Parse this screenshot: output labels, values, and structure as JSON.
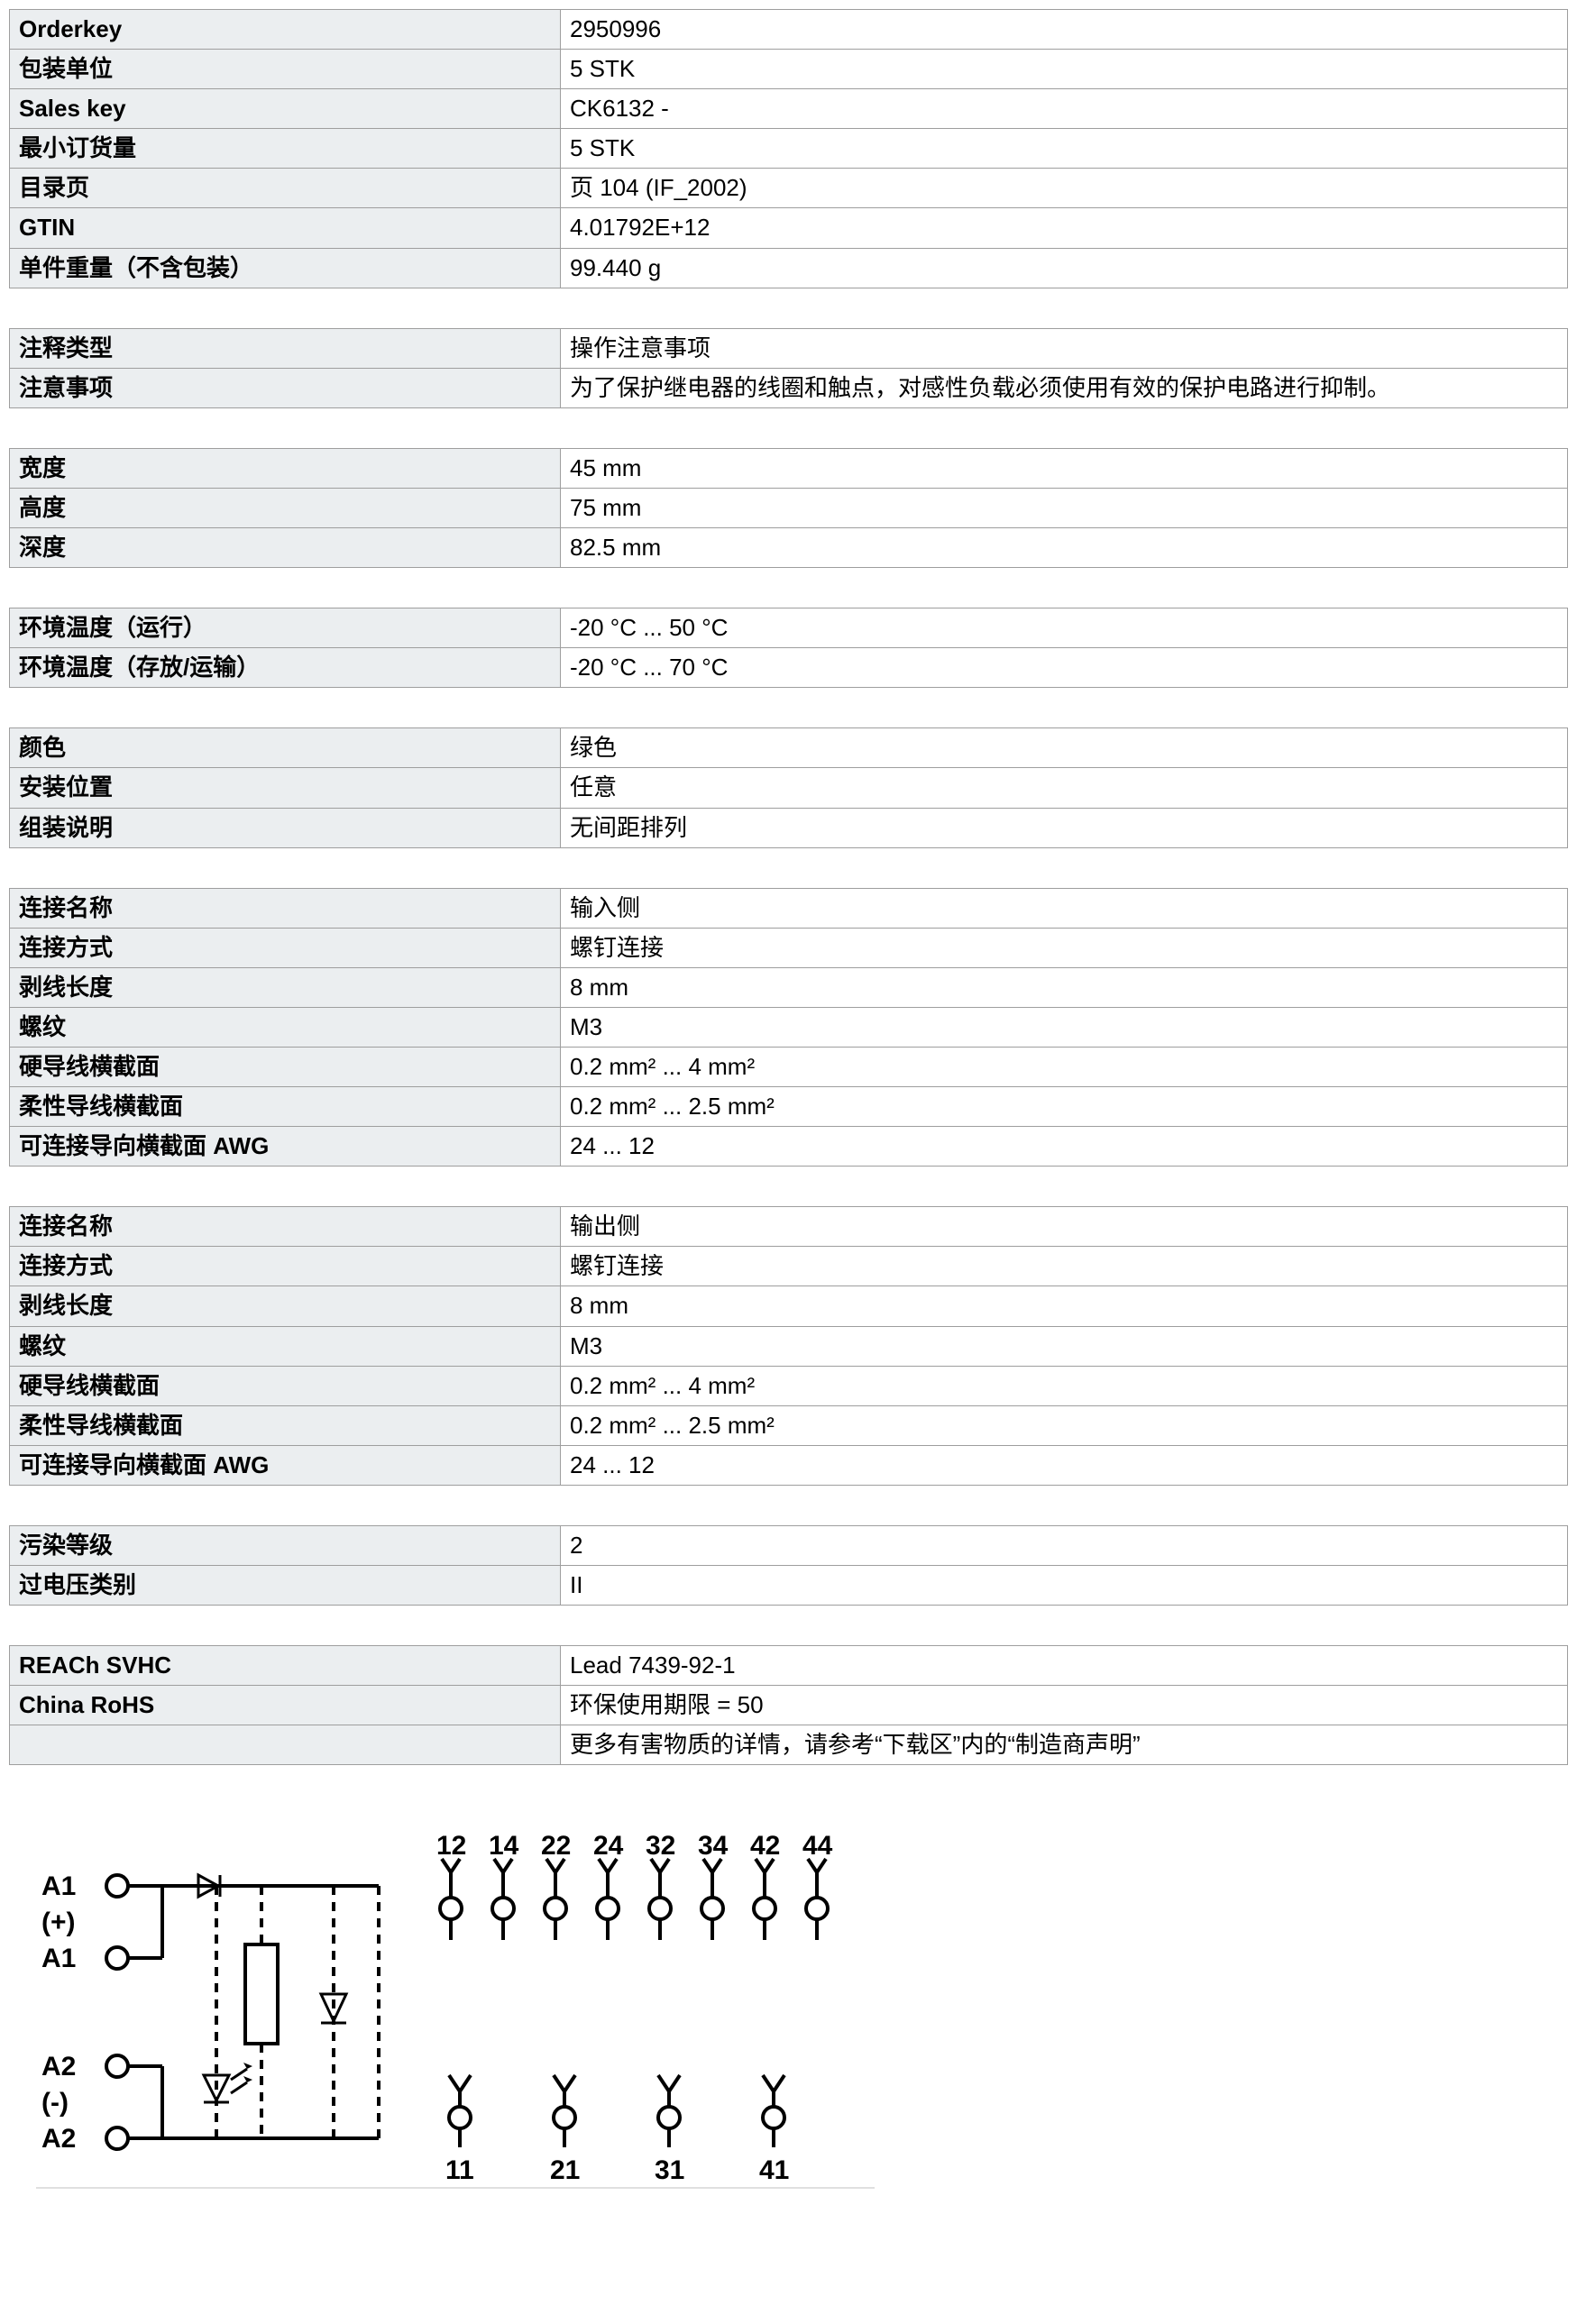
{
  "table1": {
    "rows": [
      {
        "label": "Orderkey",
        "value": "2950996"
      },
      {
        "label": "包装单位",
        "value": "5 STK"
      },
      {
        "label": "Sales key",
        "value": "CK6132 -"
      },
      {
        "label": "最小订货量",
        "value": "5 STK"
      },
      {
        "label": "目录页",
        "value": "页 104 (IF_2002)"
      },
      {
        "label": "GTIN",
        "value": "4.01792E+12"
      },
      {
        "label": "单件重量（不含包装）",
        "value": "99.440 g"
      }
    ]
  },
  "table2": {
    "rows": [
      {
        "label": "注释类型",
        "value": "操作注意事项"
      },
      {
        "label": "注意事项",
        "value": "为了保护继电器的线圈和触点，对感性负载必须使用有效的保护电路进行抑制。"
      }
    ]
  },
  "table3": {
    "rows": [
      {
        "label": "宽度",
        "value": "45 mm"
      },
      {
        "label": "高度",
        "value": "75 mm"
      },
      {
        "label": "深度",
        "value": "82.5 mm"
      }
    ]
  },
  "table4": {
    "rows": [
      {
        "label": "环境温度（运行）",
        "value": "-20 °C ... 50 °C"
      },
      {
        "label": "环境温度（存放/运输）",
        "value": "-20 °C ... 70 °C"
      }
    ]
  },
  "table5": {
    "rows": [
      {
        "label": "颜色",
        "value": "绿色"
      },
      {
        "label": "安装位置",
        "value": "任意"
      },
      {
        "label": "组装说明",
        "value": "无间距排列"
      }
    ]
  },
  "table6": {
    "rows": [
      {
        "label": "连接名称",
        "value": "输入侧"
      },
      {
        "label": "连接方式",
        "value": "螺钉连接"
      },
      {
        "label": "剥线长度",
        "value": "8 mm"
      },
      {
        "label": "螺纹",
        "value": "M3"
      },
      {
        "label": "硬导线横截面",
        "value": "0.2 mm² ... 4 mm²"
      },
      {
        "label": "柔性导线横截面",
        "value": "0.2 mm² ... 2.5 mm²"
      },
      {
        "label": "可连接导向横截面 AWG",
        "value": "24 ... 12"
      }
    ]
  },
  "table7": {
    "rows": [
      {
        "label": "连接名称",
        "value": "输出侧"
      },
      {
        "label": "连接方式",
        "value": "螺钉连接"
      },
      {
        "label": "剥线长度",
        "value": "8 mm"
      },
      {
        "label": "螺纹",
        "value": "M3"
      },
      {
        "label": "硬导线横截面",
        "value": "0.2 mm² ... 4 mm²"
      },
      {
        "label": "柔性导线横截面",
        "value": "0.2 mm² ... 2.5 mm²"
      },
      {
        "label": "可连接导向横截面 AWG",
        "value": "24 ... 12"
      }
    ]
  },
  "table8": {
    "rows": [
      {
        "label": "污染等级",
        "value": "2"
      },
      {
        "label": "过电压类别",
        "value": "II"
      }
    ]
  },
  "table9": {
    "rows": [
      {
        "label": "REACh SVHC",
        "value": "Lead 7439-92-1"
      },
      {
        "label": "China RoHS",
        "value": "环保使用期限 = 50"
      },
      {
        "label": "",
        "value": "更多有害物质的详情，请参考“下载区”内的“制造商声明”",
        "blank": true
      }
    ]
  },
  "diagram": {
    "top_labels": [
      "12",
      "14",
      "22",
      "24",
      "32",
      "34",
      "42",
      "44"
    ],
    "bottom_labels": [
      "11",
      "21",
      "31",
      "41"
    ],
    "left_top": [
      "A1",
      "(+)",
      "A1"
    ],
    "left_bottom": [
      "A2",
      "(-)",
      "A2"
    ],
    "stroke": "#000000",
    "stroke_width": 4
  },
  "tables_order": [
    "table1",
    "table2",
    "table3",
    "table4",
    "table5",
    "table6",
    "table7",
    "table8",
    "table9"
  ]
}
